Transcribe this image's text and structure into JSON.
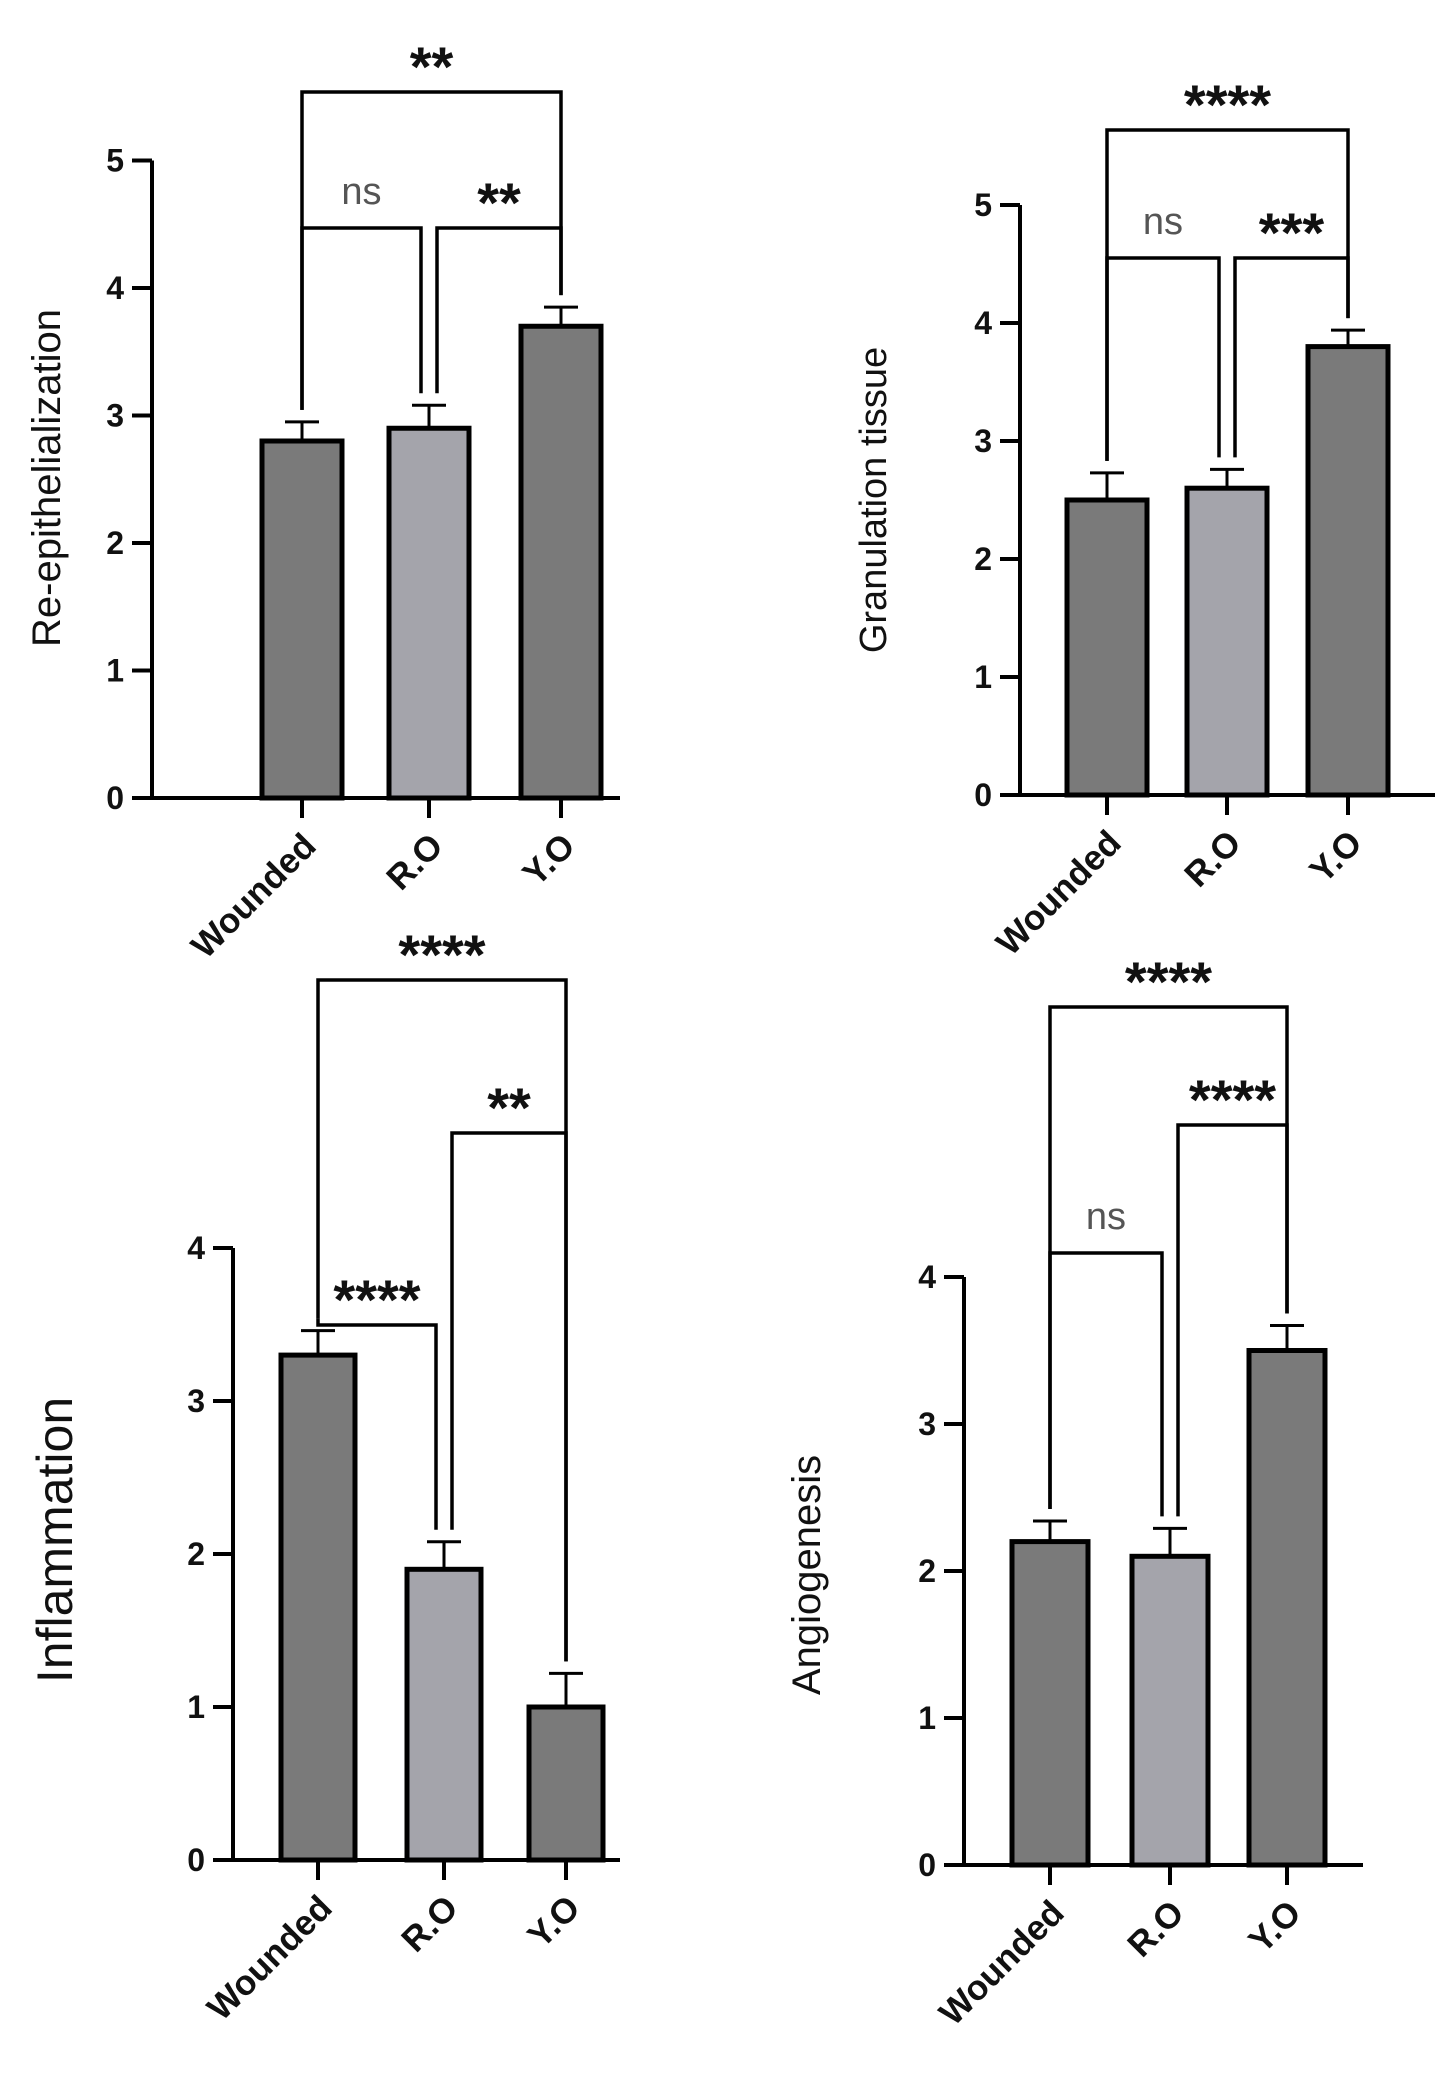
{
  "colors": {
    "bar_dark": "#7a7a7a",
    "bar_light": "#a4a4ab",
    "stroke": "#000000"
  },
  "chart_data": [
    {
      "type": "bar",
      "ylabel": "Re-epithelialization",
      "categories": [
        "Wounded",
        "R.O",
        "Y.O"
      ],
      "values": [
        2.8,
        2.9,
        3.7
      ],
      "errors": [
        0.15,
        0.18,
        0.15
      ],
      "ylim": [
        0,
        5
      ],
      "yticks": [
        "0",
        "1",
        "2",
        "3",
        "4",
        "5"
      ],
      "significance": [
        {
          "from": 0,
          "to": 1,
          "label": "ns"
        },
        {
          "from": 1,
          "to": 2,
          "label": "**"
        },
        {
          "from": 0,
          "to": 2,
          "label": "**"
        }
      ]
    },
    {
      "type": "bar",
      "ylabel": "Granulation tissue",
      "categories": [
        "Wounded",
        "R.O",
        "Y.O"
      ],
      "values": [
        2.5,
        2.6,
        3.8
      ],
      "errors": [
        0.23,
        0.16,
        0.14
      ],
      "ylim": [
        0,
        5
      ],
      "yticks": [
        "0",
        "1",
        "2",
        "3",
        "4",
        "5"
      ],
      "significance": [
        {
          "from": 0,
          "to": 1,
          "label": "ns"
        },
        {
          "from": 1,
          "to": 2,
          "label": "***"
        },
        {
          "from": 0,
          "to": 2,
          "label": "****"
        }
      ]
    },
    {
      "type": "bar",
      "ylabel": "Inflammation",
      "categories": [
        "Wounded",
        "R.O",
        "Y.O"
      ],
      "values": [
        3.3,
        1.9,
        1.0
      ],
      "errors": [
        0.16,
        0.18,
        0.22
      ],
      "ylim": [
        0,
        4
      ],
      "yticks": [
        "0",
        "1",
        "2",
        "3",
        "4"
      ],
      "significance": [
        {
          "from": 0,
          "to": 1,
          "label": "****"
        },
        {
          "from": 1,
          "to": 2,
          "label": "**"
        },
        {
          "from": 0,
          "to": 2,
          "label": "****"
        }
      ]
    },
    {
      "type": "bar",
      "ylabel": "Angiogenesis",
      "categories": [
        "Wounded",
        "R.O",
        "Y.O"
      ],
      "values": [
        2.2,
        2.1,
        3.5
      ],
      "errors": [
        0.14,
        0.19,
        0.17
      ],
      "ylim": [
        0,
        4
      ],
      "yticks": [
        "0",
        "1",
        "2",
        "3",
        "4"
      ],
      "significance": [
        {
          "from": 0,
          "to": 1,
          "label": "ns"
        },
        {
          "from": 1,
          "to": 2,
          "label": "****"
        },
        {
          "from": 0,
          "to": 2,
          "label": "****"
        }
      ]
    }
  ]
}
